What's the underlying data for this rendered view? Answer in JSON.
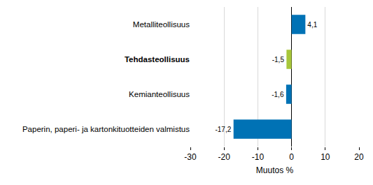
{
  "chart_data": {
    "type": "bar",
    "orientation": "horizontal",
    "categories": [
      "Metalliteollisuus",
      "Tehdasteollisuus",
      "Kemianteollisuus",
      "Paperin, paperi- ja kartonkituotteiden valmistus"
    ],
    "values": [
      4.1,
      -1.5,
      -1.6,
      -17.2
    ],
    "value_labels": [
      "4,1",
      "-1,5",
      "-1,6",
      "-17,2"
    ],
    "colors": [
      "#0072b5",
      "#a8c73a",
      "#0072b5",
      "#0072b5"
    ],
    "x_label": "Muutos %",
    "xlim": [
      -30,
      20
    ],
    "xticks": [
      -30,
      -20,
      -10,
      0,
      10,
      20
    ],
    "grid": true,
    "data_labels": true
  }
}
